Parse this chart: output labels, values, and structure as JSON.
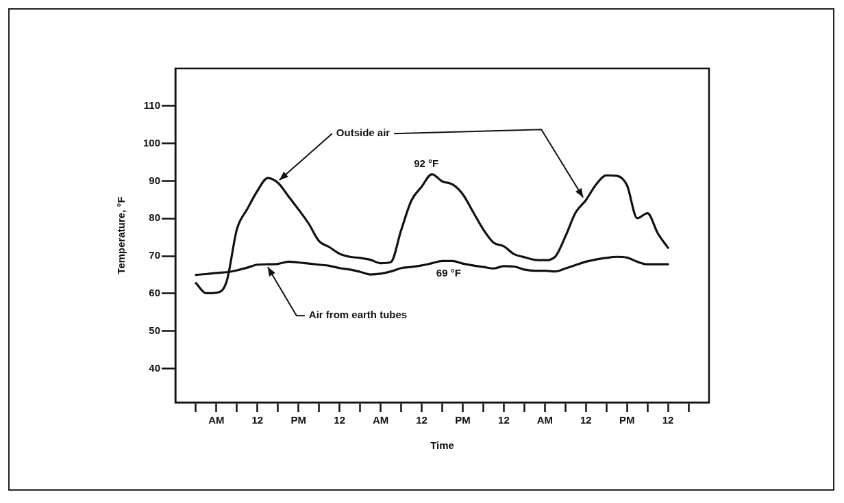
{
  "chart_data": {
    "type": "line",
    "xlabel": "Time",
    "ylabel": "Temperature, °F",
    "categories": [
      null,
      null,
      null,
      null,
      "AM",
      null,
      null,
      null,
      "12",
      null,
      null,
      null,
      "PM",
      null,
      null,
      null,
      "12",
      null,
      null,
      null,
      "AM",
      null,
      null,
      null,
      "12",
      null,
      null,
      null,
      "PM",
      null,
      null,
      null,
      "12",
      null,
      null,
      null,
      "AM",
      null,
      null,
      null,
      "12",
      null,
      null,
      null,
      "PM",
      null,
      null,
      null,
      "12",
      null,
      null,
      null,
      null
    ],
    "ylim": [
      31,
      120
    ],
    "yticks": [
      40,
      50,
      60,
      70,
      80,
      90,
      100,
      110
    ],
    "marker": "none",
    "line_style": "solid",
    "series": [
      {
        "name": "Outside air",
        "color": "#111111",
        "values": [
          null,
          null,
          62.8,
          60.1,
          60.2,
          63.3,
          77.2,
          82.5,
          87.4,
          90.8,
          89.5,
          86.0,
          82.4,
          78.6,
          74.0,
          72.4,
          70.6,
          69.8,
          69.5,
          69.0,
          68.1,
          68.4,
          76.9,
          84.8,
          88.5,
          91.8,
          89.9,
          89.1,
          86.5,
          81.8,
          77.1,
          73.6,
          72.6,
          70.5,
          69.7,
          69.0,
          68.9,
          69.8,
          75.2,
          81.6,
          84.9,
          89.1,
          91.5,
          91.4,
          88.9,
          80.1,
          81.4,
          76.1,
          72.2,
          null,
          null,
          null,
          null
        ]
      },
      {
        "name": "Air from earth tubes",
        "color": "#111111",
        "values": [
          null,
          null,
          65.0,
          65.2,
          65.5,
          65.7,
          66.2,
          66.9,
          67.7,
          67.8,
          67.9,
          68.5,
          68.3,
          68.0,
          67.7,
          67.4,
          66.8,
          66.4,
          65.8,
          65.1,
          65.3,
          65.9,
          66.8,
          67.1,
          67.5,
          68.1,
          68.7,
          68.7,
          68.0,
          67.5,
          67.1,
          66.7,
          67.3,
          67.2,
          66.4,
          66.1,
          66.1,
          65.9,
          66.7,
          67.6,
          68.5,
          69.1,
          69.5,
          69.8,
          69.6,
          68.5,
          67.8,
          67.8,
          67.8,
          null,
          null,
          null,
          null
        ]
      }
    ],
    "annotations": [
      "92 °F",
      "69 °F"
    ]
  }
}
